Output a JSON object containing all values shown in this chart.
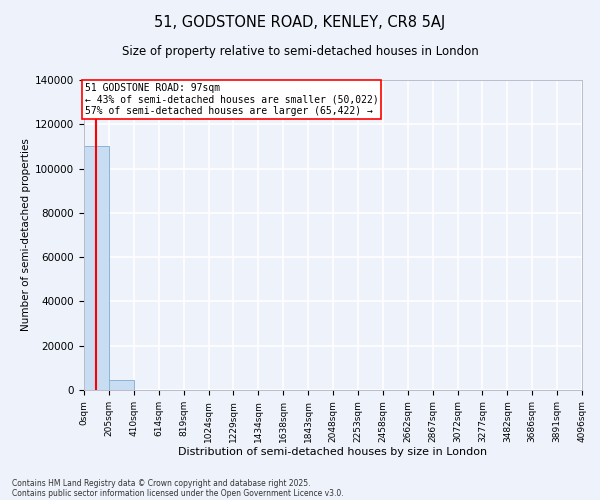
{
  "title": "51, GODSTONE ROAD, KENLEY, CR8 5AJ",
  "subtitle": "Size of property relative to semi-detached houses in London",
  "xlabel": "Distribution of semi-detached houses by size in London",
  "ylabel": "Number of semi-detached properties",
  "property_size": 97,
  "annotation_text_line1": "51 GODSTONE ROAD: 97sqm",
  "annotation_text_line2": "← 43% of semi-detached houses are smaller (50,022)",
  "annotation_text_line3": "57% of semi-detached houses are larger (65,422) →",
  "bar_color": "#c9ddf2",
  "bar_edge_color": "#8ab4d8",
  "vline_color": "red",
  "background_color": "#eef2fb",
  "grid_color": "white",
  "bin_edges": [
    0,
    205,
    410,
    614,
    819,
    1024,
    1229,
    1434,
    1638,
    1843,
    2048,
    2253,
    2458,
    2662,
    2867,
    3072,
    3277,
    3482,
    3686,
    3891,
    4096
  ],
  "bin_labels": [
    "0sqm",
    "205sqm",
    "410sqm",
    "614sqm",
    "819sqm",
    "1024sqm",
    "1229sqm",
    "1434sqm",
    "1638sqm",
    "1843sqm",
    "2048sqm",
    "2253sqm",
    "2458sqm",
    "2662sqm",
    "2867sqm",
    "3072sqm",
    "3277sqm",
    "3482sqm",
    "3686sqm",
    "3891sqm",
    "4096sqm"
  ],
  "bar_heights": [
    110000,
    4500,
    200,
    80,
    40,
    20,
    15,
    10,
    8,
    6,
    5,
    4,
    3,
    3,
    2,
    2,
    2,
    1,
    1,
    1
  ],
  "ylim": [
    0,
    140000
  ],
  "yticks": [
    0,
    20000,
    40000,
    60000,
    80000,
    100000,
    120000,
    140000
  ],
  "footnote1": "Contains HM Land Registry data © Crown copyright and database right 2025.",
  "footnote2": "Contains public sector information licensed under the Open Government Licence v3.0."
}
